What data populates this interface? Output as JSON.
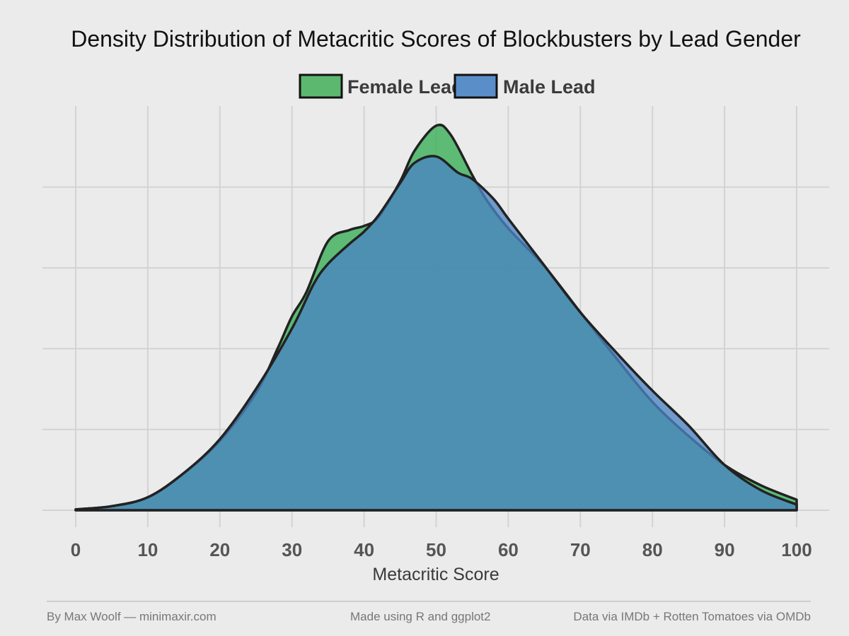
{
  "chart_data": {
    "type": "area",
    "title": "Density Distribution of Metacritic Scores of Blockbusters by Lead Gender",
    "xlabel": "Metacritic Score",
    "ylabel": "",
    "xlim": [
      0,
      100
    ],
    "x_ticks": [
      0,
      10,
      20,
      30,
      40,
      50,
      60,
      70,
      80,
      90,
      100
    ],
    "y_gridlines": [
      0,
      1,
      2,
      3,
      4
    ],
    "ylim": [
      0,
      4.7
    ],
    "legend_position": "top",
    "grid": true,
    "series": [
      {
        "name": "Female Lead",
        "color": "#3db05a",
        "x": [
          0,
          5,
          10,
          15,
          20,
          25,
          28,
          30,
          32,
          35,
          38,
          40,
          42,
          45,
          47,
          50,
          52,
          55,
          57,
          60,
          65,
          70,
          75,
          80,
          85,
          90,
          95,
          100
        ],
        "y": [
          0.01,
          0.05,
          0.16,
          0.46,
          0.86,
          1.45,
          2.0,
          2.4,
          2.7,
          3.33,
          3.47,
          3.52,
          3.63,
          4.07,
          4.45,
          4.76,
          4.65,
          4.15,
          3.84,
          3.49,
          3.02,
          2.45,
          1.88,
          1.34,
          0.92,
          0.56,
          0.31,
          0.13
        ]
      },
      {
        "name": "Male Lead",
        "color": "#4a84c2",
        "x": [
          0,
          5,
          10,
          15,
          20,
          25,
          30,
          33,
          35,
          38,
          40,
          42,
          45,
          47,
          50,
          53,
          55,
          58,
          60,
          65,
          70,
          75,
          80,
          85,
          90,
          95,
          100
        ],
        "y": [
          0.01,
          0.05,
          0.16,
          0.46,
          0.88,
          1.5,
          2.25,
          2.8,
          3.05,
          3.3,
          3.45,
          3.65,
          4.05,
          4.3,
          4.38,
          4.18,
          4.1,
          3.85,
          3.61,
          3.03,
          2.45,
          1.95,
          1.48,
          1.05,
          0.56,
          0.25,
          0.07
        ]
      }
    ]
  },
  "footer": {
    "author": "By Max Woolf — minimaxir.com",
    "tool": "Made using R and ggplot2",
    "source": "Data via IMDb + Rotten Tomatoes via OMDb"
  }
}
